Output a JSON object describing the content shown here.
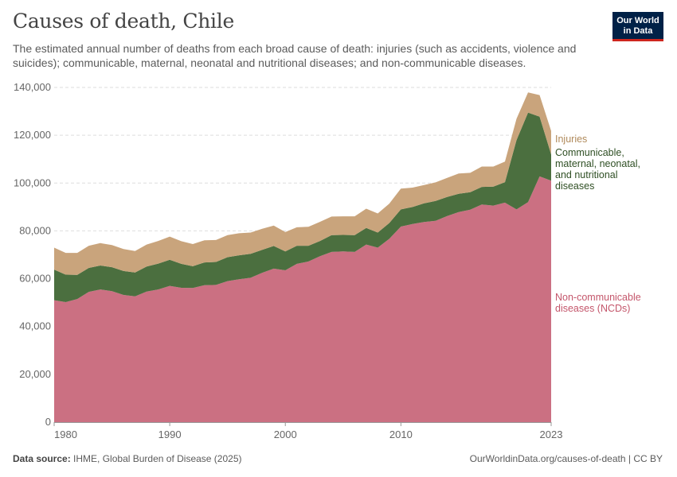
{
  "header": {
    "title": "Causes of death, Chile",
    "subtitle": "The estimated annual number of deaths from each broad cause of death: injuries (such as accidents, violence and suicides); communicable, maternal, neonatal and nutritional diseases; and non-communicable diseases."
  },
  "logo": {
    "line1": "Our World",
    "line2": "in Data"
  },
  "footer": {
    "source_label": "Data source:",
    "source_text": "IHME, Global Burden of Disease (2025)",
    "url": "OurWorldinData.org/causes-of-death | CC BY"
  },
  "colors": {
    "ncd": "#cb7082",
    "communicable": "#4b6f3f",
    "injuries": "#c9a47c",
    "grid": "#dddddd"
  },
  "chart_data": {
    "type": "area",
    "stacked": true,
    "title": "Causes of death, Chile",
    "x": [
      1980,
      1981,
      1982,
      1983,
      1984,
      1985,
      1986,
      1987,
      1988,
      1989,
      1990,
      1991,
      1992,
      1993,
      1994,
      1995,
      1996,
      1997,
      1998,
      1999,
      2000,
      2001,
      2002,
      2003,
      2004,
      2005,
      2006,
      2007,
      2008,
      2009,
      2010,
      2011,
      2012,
      2013,
      2014,
      2015,
      2016,
      2017,
      2018,
      2019,
      2020,
      2021,
      2022,
      2023
    ],
    "x_tick_labels": [
      "1980",
      "1990",
      "2000",
      "2010",
      "2023"
    ],
    "x_ticks": [
      1980,
      1990,
      2000,
      2010,
      2023
    ],
    "ylim": [
      0,
      140000
    ],
    "y_ticks": [
      0,
      20000,
      40000,
      60000,
      80000,
      100000,
      120000,
      140000
    ],
    "y_tick_labels": [
      "0",
      "20,000",
      "40,000",
      "60,000",
      "80,000",
      "100,000",
      "120,000",
      "140,000"
    ],
    "grid": true,
    "legend": "right-inline",
    "series": [
      {
        "name": "Non-communicable diseases (NCDs)",
        "label_lines": [
          "Non-communicable",
          "diseases (NCDs)"
        ],
        "values": [
          51000,
          50200,
          51500,
          54500,
          55500,
          54800,
          53200,
          52600,
          54600,
          55500,
          57000,
          56200,
          56100,
          57300,
          57400,
          59000,
          59800,
          60400,
          62500,
          64200,
          63500,
          66200,
          67200,
          69400,
          71200,
          71400,
          71200,
          74300,
          73000,
          76700,
          81800,
          82900,
          83700,
          84200,
          86200,
          87900,
          88900,
          91000,
          90600,
          91800,
          89000,
          92000,
          102800,
          101000
        ]
      },
      {
        "name": "Communicable, maternal, neonatal, and nutritional diseases",
        "label_lines": [
          "Communicable,",
          "maternal, neonatal,",
          "and nutritional",
          "diseases"
        ],
        "values": [
          12800,
          11500,
          10100,
          10000,
          10000,
          10000,
          10000,
          10000,
          10500,
          10800,
          10900,
          10000,
          9100,
          9500,
          9600,
          10000,
          10000,
          10000,
          9600,
          9500,
          7900,
          7600,
          6600,
          6400,
          7000,
          6900,
          7000,
          6900,
          6300,
          6600,
          7200,
          7100,
          7800,
          8300,
          8000,
          7600,
          7300,
          7400,
          7900,
          8600,
          29000,
          37500,
          25000,
          11000
        ]
      },
      {
        "name": "Injuries",
        "label_lines": [
          "Injuries"
        ],
        "values": [
          9200,
          9100,
          9200,
          9300,
          9400,
          9300,
          9200,
          9000,
          9200,
          9500,
          9700,
          9500,
          9300,
          9300,
          9200,
          9200,
          9200,
          8900,
          8800,
          8500,
          8100,
          7700,
          7900,
          8000,
          7800,
          7800,
          7900,
          8100,
          8000,
          8100,
          8700,
          8100,
          7700,
          7800,
          8000,
          8500,
          8100,
          8500,
          8400,
          8600,
          8900,
          8400,
          9000,
          9800
        ]
      }
    ]
  }
}
